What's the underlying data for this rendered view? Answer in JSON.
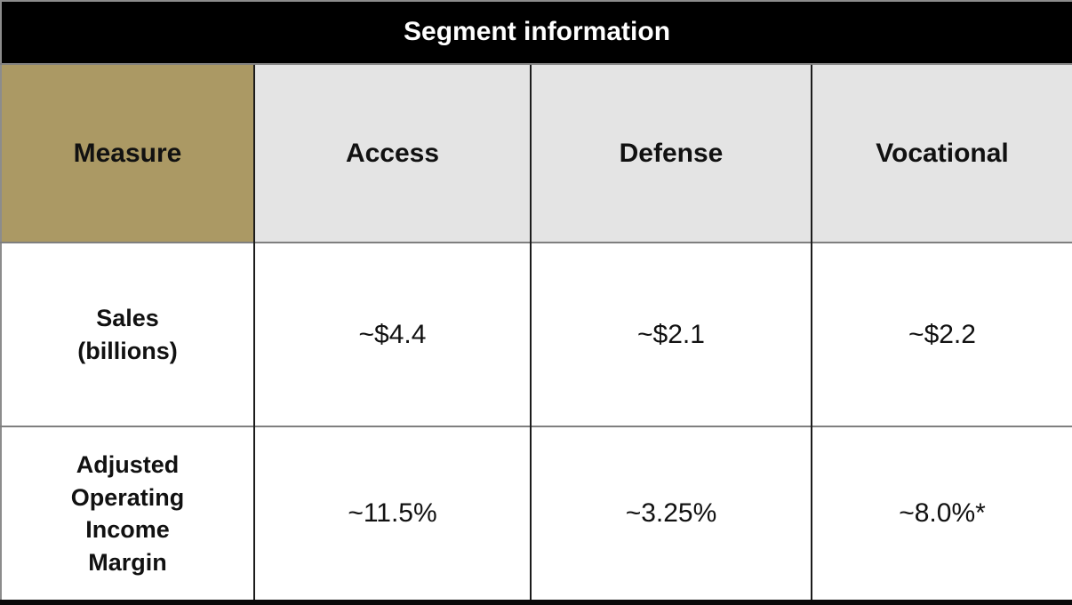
{
  "colors": {
    "title_bg": "#000000",
    "title_text": "#ffffff",
    "measure_column_bg": "#ab9964",
    "header_row_bg": "#e4e4e4",
    "value_cell_bg": "#ffffff",
    "horizontal_border": "#7f7f7f",
    "vertical_border": "#1c1c1c"
  },
  "table": {
    "title": "Segment information",
    "columns": [
      "Measure",
      "Access",
      "Defense",
      "Vocational"
    ],
    "rows": [
      {
        "label": "Sales\n(billions)",
        "values": [
          "~$4.4",
          "~$2.1",
          "~$2.2"
        ]
      },
      {
        "label": "Adjusted\nOperating\nIncome\nMargin",
        "values": [
          "~11.5%",
          "~3.25%",
          "~8.0%*"
        ]
      }
    ]
  },
  "chart_data": {
    "type": "table",
    "title": "Segment information",
    "columns": [
      "Measure",
      "Access",
      "Defense",
      "Vocational"
    ],
    "rows": [
      [
        "Sales (billions)",
        "~$4.4",
        "~$2.1",
        "~$2.2"
      ],
      [
        "Adjusted Operating Income Margin",
        "~11.5%",
        "~3.25%",
        "~8.0%*"
      ]
    ]
  }
}
